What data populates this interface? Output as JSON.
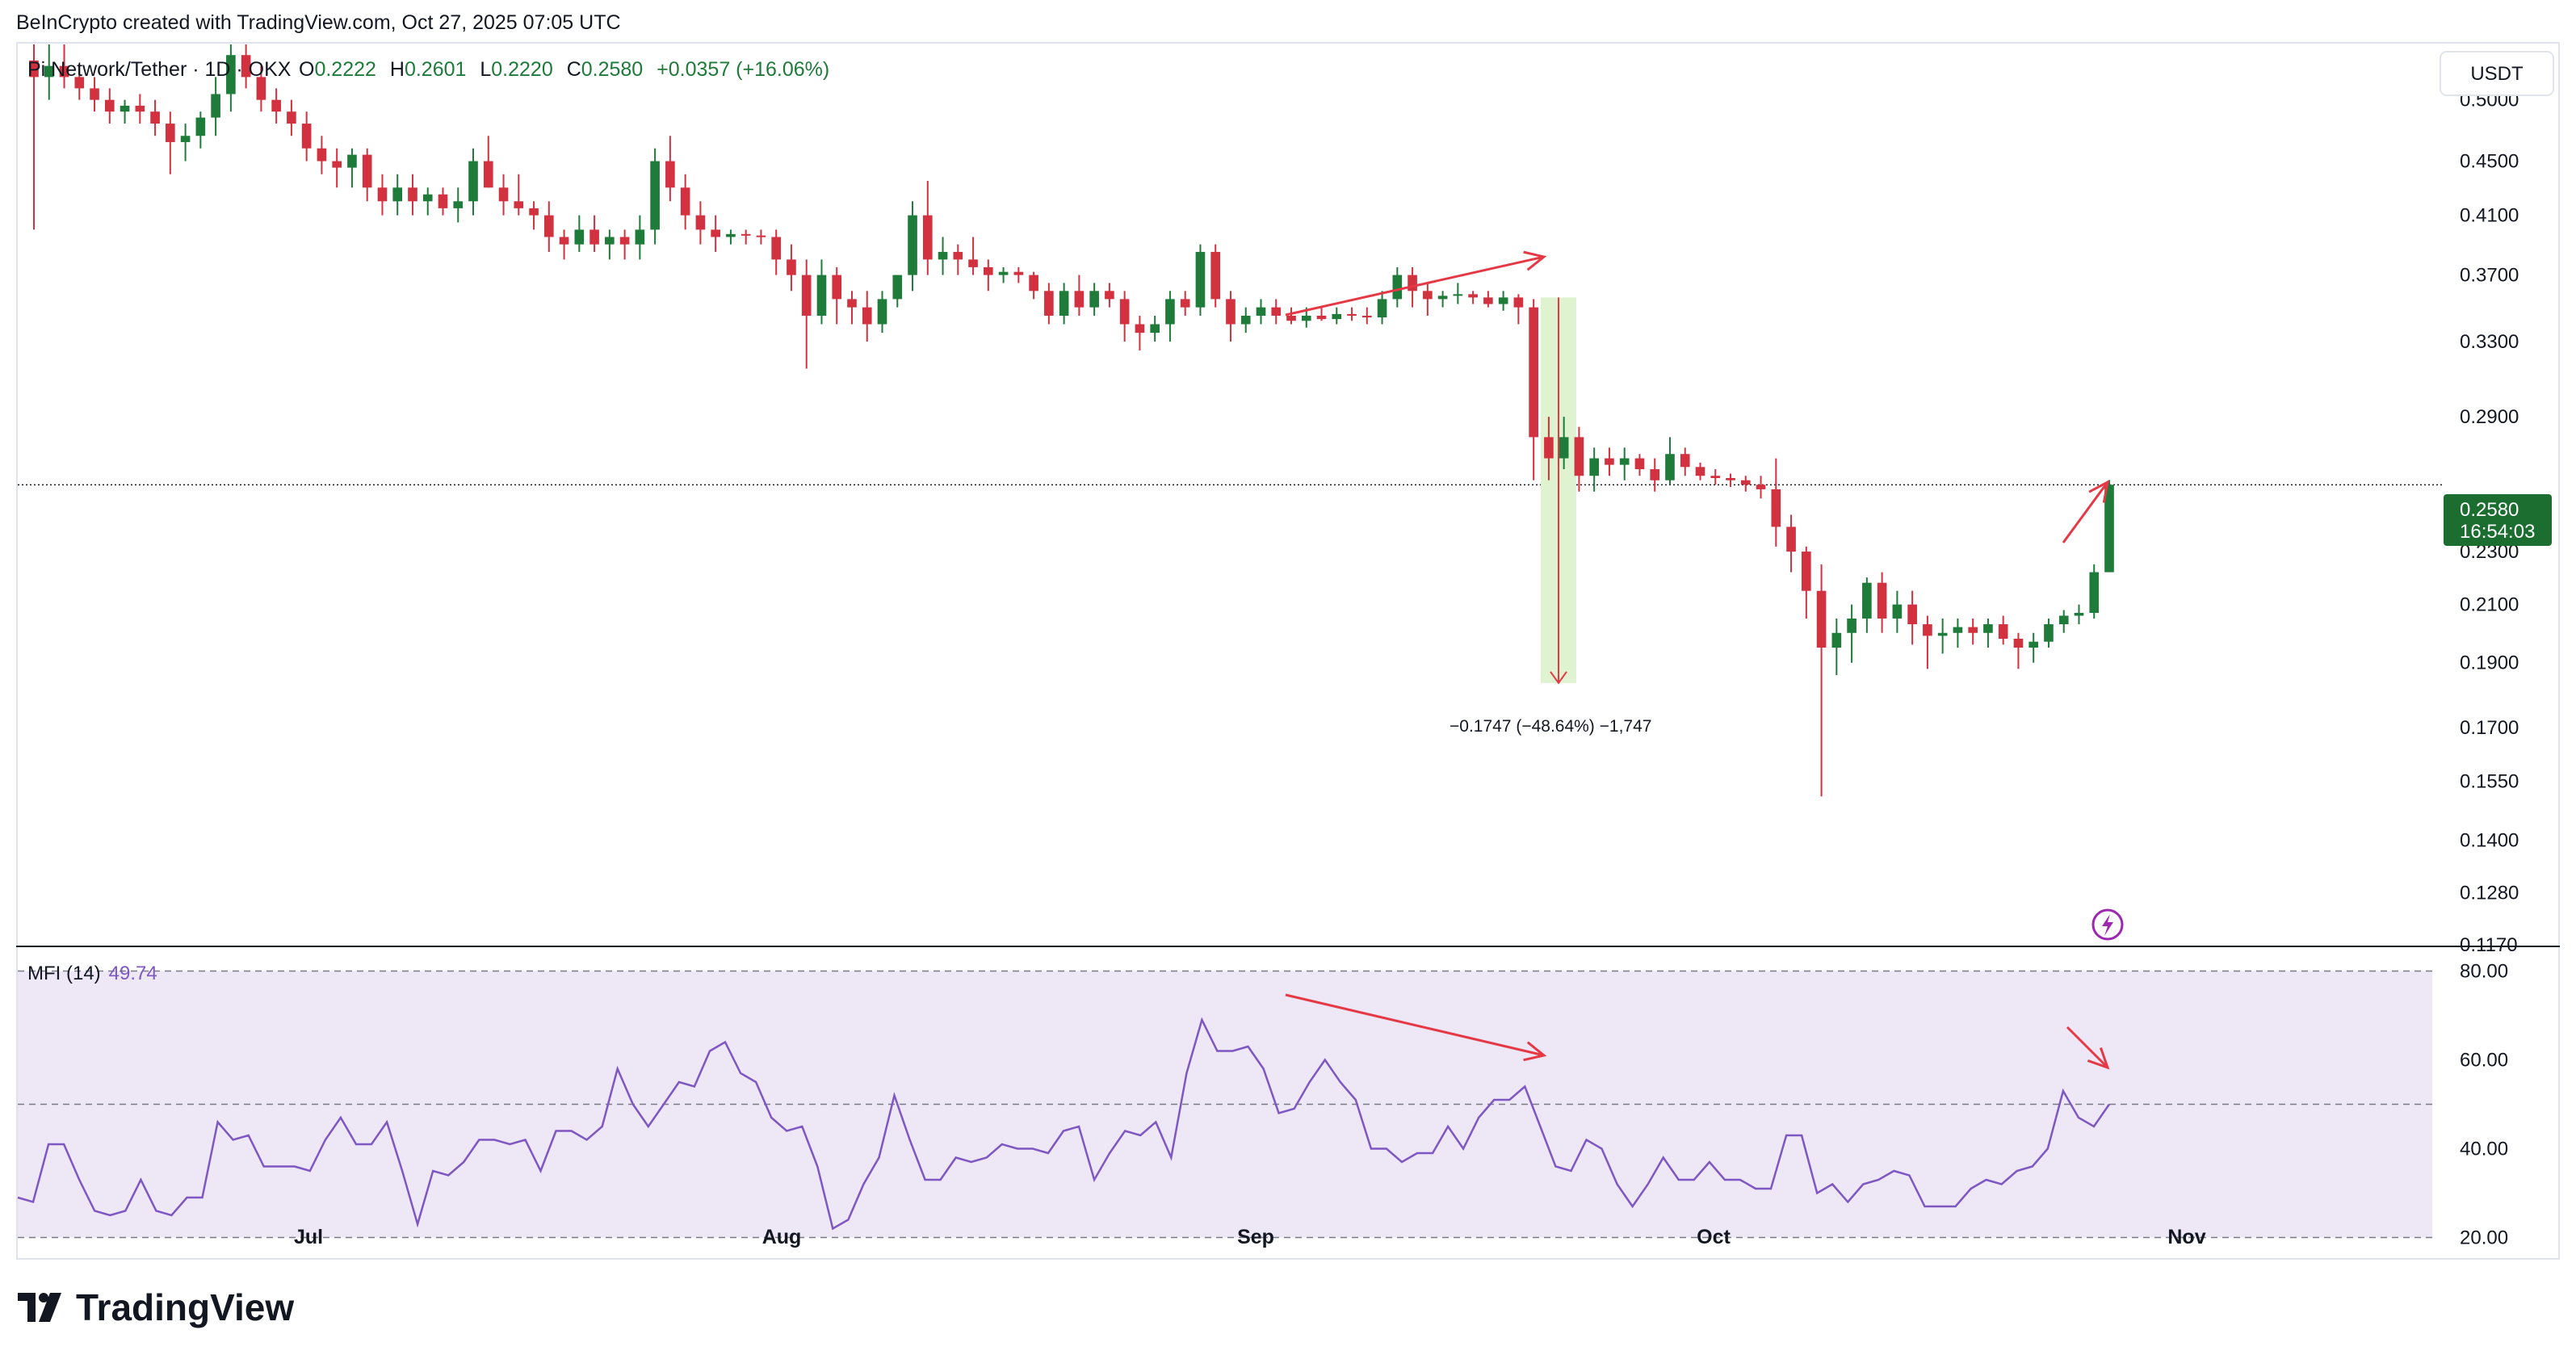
{
  "header": {
    "attribution": "BeInCrypto created with TradingView.com, Oct 27, 2025 07:05 UTC",
    "symbol": "Pi Network/Tether · 1D · OKX",
    "open_label": "O",
    "open": "0.2222",
    "high_label": "H",
    "high": "0.2601",
    "low_label": "L",
    "low": "0.2220",
    "close_label": "C",
    "close": "0.2580",
    "change": "+0.0357 (+16.06%)"
  },
  "axis": {
    "currency_button": "USDT",
    "price_ticks": [
      "0.5000",
      "0.4500",
      "0.4100",
      "0.3700",
      "0.3300",
      "0.2900",
      "0.2300",
      "0.2100",
      "0.1900",
      "0.1700",
      "0.1550",
      "0.1400",
      "0.1280",
      "0.1170"
    ],
    "current_price": "0.2580",
    "countdown": "16:54:03",
    "mfi_ticks": [
      "80.00",
      "60.00",
      "40.00",
      "20.00"
    ],
    "time_labels": [
      "Jul",
      "Aug",
      "Sep",
      "Oct",
      "Nov"
    ]
  },
  "annotations": {
    "measure_label": "−0.1747 (−48.64%) −1,747"
  },
  "indicator": {
    "name": "MFI (14)",
    "value": "49.74"
  },
  "footer": {
    "logo_text": "TradingView"
  },
  "colors": {
    "up": "#1e7b3a",
    "down": "#d2313f",
    "mfi_line": "#7e57c2",
    "mfi_band": "#ede7f6",
    "annotation": "#e53946",
    "measure_fill": "#dff3d0",
    "price_badge": "#1b6e2f"
  },
  "chart_data": [
    {
      "type": "candlestick",
      "title": "Pi Network/Tether · 1D · OKX",
      "y_axis": "USDT",
      "y_scale": "log",
      "ylim": [
        0.117,
        0.55
      ],
      "x_labels": [
        "Jul",
        "Aug",
        "Sep",
        "Oct",
        "Nov"
      ],
      "last_close": 0.258,
      "ohlc": [
        [
          0.535,
          0.55,
          0.4,
          0.52
        ],
        [
          0.52,
          0.55,
          0.5,
          0.53
        ],
        [
          0.53,
          0.55,
          0.51,
          0.52
        ],
        [
          0.52,
          0.53,
          0.5,
          0.51
        ],
        [
          0.51,
          0.52,
          0.49,
          0.5
        ],
        [
          0.5,
          0.51,
          0.48,
          0.49
        ],
        [
          0.49,
          0.5,
          0.48,
          0.495
        ],
        [
          0.495,
          0.505,
          0.48,
          0.49
        ],
        [
          0.49,
          0.5,
          0.47,
          0.48
        ],
        [
          0.48,
          0.49,
          0.44,
          0.465
        ],
        [
          0.465,
          0.48,
          0.45,
          0.47
        ],
        [
          0.47,
          0.49,
          0.46,
          0.485
        ],
        [
          0.485,
          0.52,
          0.47,
          0.505
        ],
        [
          0.505,
          0.55,
          0.49,
          0.54
        ],
        [
          0.54,
          0.55,
          0.51,
          0.52
        ],
        [
          0.52,
          0.53,
          0.49,
          0.5
        ],
        [
          0.5,
          0.51,
          0.48,
          0.49
        ],
        [
          0.49,
          0.5,
          0.47,
          0.48
        ],
        [
          0.48,
          0.49,
          0.45,
          0.46
        ],
        [
          0.46,
          0.47,
          0.44,
          0.45
        ],
        [
          0.45,
          0.46,
          0.43,
          0.445
        ],
        [
          0.445,
          0.46,
          0.43,
          0.455
        ],
        [
          0.455,
          0.46,
          0.42,
          0.43
        ],
        [
          0.43,
          0.44,
          0.41,
          0.42
        ],
        [
          0.42,
          0.44,
          0.41,
          0.43
        ],
        [
          0.43,
          0.44,
          0.41,
          0.42
        ],
        [
          0.42,
          0.43,
          0.41,
          0.425
        ],
        [
          0.425,
          0.43,
          0.41,
          0.415
        ],
        [
          0.415,
          0.43,
          0.405,
          0.42
        ],
        [
          0.42,
          0.46,
          0.41,
          0.45
        ],
        [
          0.45,
          0.47,
          0.43,
          0.43
        ],
        [
          0.43,
          0.44,
          0.41,
          0.42
        ],
        [
          0.42,
          0.44,
          0.41,
          0.415
        ],
        [
          0.415,
          0.42,
          0.4,
          0.41
        ],
        [
          0.41,
          0.42,
          0.385,
          0.395
        ],
        [
          0.395,
          0.4,
          0.38,
          0.39
        ],
        [
          0.39,
          0.41,
          0.385,
          0.4
        ],
        [
          0.4,
          0.41,
          0.385,
          0.39
        ],
        [
          0.39,
          0.4,
          0.38,
          0.395
        ],
        [
          0.395,
          0.4,
          0.38,
          0.39
        ],
        [
          0.39,
          0.41,
          0.38,
          0.4
        ],
        [
          0.4,
          0.46,
          0.39,
          0.45
        ],
        [
          0.45,
          0.47,
          0.42,
          0.43
        ],
        [
          0.43,
          0.44,
          0.4,
          0.41
        ],
        [
          0.41,
          0.42,
          0.39,
          0.4
        ],
        [
          0.4,
          0.41,
          0.385,
          0.395
        ],
        [
          0.395,
          0.4,
          0.39,
          0.397
        ],
        [
          0.397,
          0.4,
          0.39,
          0.396
        ],
        [
          0.396,
          0.4,
          0.39,
          0.395
        ],
        [
          0.395,
          0.4,
          0.37,
          0.38
        ],
        [
          0.38,
          0.39,
          0.36,
          0.37
        ],
        [
          0.37,
          0.38,
          0.315,
          0.345
        ],
        [
          0.345,
          0.38,
          0.34,
          0.37
        ],
        [
          0.37,
          0.375,
          0.34,
          0.355
        ],
        [
          0.355,
          0.36,
          0.34,
          0.35
        ],
        [
          0.35,
          0.36,
          0.33,
          0.34
        ],
        [
          0.34,
          0.36,
          0.335,
          0.355
        ],
        [
          0.355,
          0.37,
          0.35,
          0.37
        ],
        [
          0.37,
          0.42,
          0.36,
          0.41
        ],
        [
          0.41,
          0.435,
          0.37,
          0.38
        ],
        [
          0.38,
          0.395,
          0.37,
          0.385
        ],
        [
          0.385,
          0.39,
          0.37,
          0.38
        ],
        [
          0.38,
          0.395,
          0.37,
          0.375
        ],
        [
          0.375,
          0.38,
          0.36,
          0.37
        ],
        [
          0.37,
          0.375,
          0.365,
          0.372
        ],
        [
          0.372,
          0.375,
          0.365,
          0.37
        ],
        [
          0.37,
          0.372,
          0.355,
          0.36
        ],
        [
          0.36,
          0.365,
          0.34,
          0.345
        ],
        [
          0.345,
          0.365,
          0.34,
          0.36
        ],
        [
          0.36,
          0.37,
          0.345,
          0.35
        ],
        [
          0.35,
          0.365,
          0.345,
          0.36
        ],
        [
          0.36,
          0.365,
          0.35,
          0.355
        ],
        [
          0.355,
          0.36,
          0.33,
          0.34
        ],
        [
          0.34,
          0.345,
          0.325,
          0.335
        ],
        [
          0.335,
          0.345,
          0.33,
          0.34
        ],
        [
          0.34,
          0.36,
          0.33,
          0.355
        ],
        [
          0.355,
          0.36,
          0.345,
          0.35
        ],
        [
          0.35,
          0.39,
          0.345,
          0.385
        ],
        [
          0.385,
          0.39,
          0.35,
          0.355
        ],
        [
          0.355,
          0.36,
          0.33,
          0.34
        ],
        [
          0.34,
          0.35,
          0.335,
          0.345
        ],
        [
          0.345,
          0.355,
          0.34,
          0.35
        ],
        [
          0.35,
          0.355,
          0.34,
          0.345
        ],
        [
          0.345,
          0.35,
          0.34,
          0.342
        ],
        [
          0.342,
          0.35,
          0.338,
          0.345
        ],
        [
          0.345,
          0.35,
          0.342,
          0.343
        ],
        [
          0.343,
          0.35,
          0.34,
          0.346
        ],
        [
          0.346,
          0.35,
          0.342,
          0.345
        ],
        [
          0.345,
          0.35,
          0.34,
          0.344
        ],
        [
          0.344,
          0.36,
          0.34,
          0.355
        ],
        [
          0.355,
          0.375,
          0.35,
          0.37
        ],
        [
          0.37,
          0.375,
          0.35,
          0.36
        ],
        [
          0.36,
          0.365,
          0.345,
          0.355
        ],
        [
          0.355,
          0.36,
          0.35,
          0.357
        ],
        [
          0.357,
          0.365,
          0.352,
          0.358
        ],
        [
          0.358,
          0.36,
          0.352,
          0.356
        ],
        [
          0.356,
          0.36,
          0.35,
          0.352
        ],
        [
          0.352,
          0.36,
          0.348,
          0.356
        ],
        [
          0.356,
          0.358,
          0.34,
          0.35
        ],
        [
          0.35,
          0.355,
          0.26,
          0.28
        ],
        [
          0.28,
          0.29,
          0.26,
          0.27
        ],
        [
          0.27,
          0.29,
          0.265,
          0.28
        ],
        [
          0.28,
          0.285,
          0.255,
          0.262
        ],
        [
          0.262,
          0.275,
          0.255,
          0.27
        ],
        [
          0.27,
          0.275,
          0.262,
          0.267
        ],
        [
          0.267,
          0.275,
          0.26,
          0.27
        ],
        [
          0.27,
          0.272,
          0.262,
          0.265
        ],
        [
          0.265,
          0.27,
          0.255,
          0.26
        ],
        [
          0.26,
          0.28,
          0.258,
          0.272
        ],
        [
          0.272,
          0.275,
          0.262,
          0.266
        ],
        [
          0.266,
          0.268,
          0.26,
          0.262
        ],
        [
          0.262,
          0.265,
          0.258,
          0.261
        ],
        [
          0.261,
          0.263,
          0.257,
          0.26
        ],
        [
          0.26,
          0.262,
          0.255,
          0.258
        ],
        [
          0.258,
          0.262,
          0.252,
          0.256
        ],
        [
          0.256,
          0.27,
          0.232,
          0.24
        ],
        [
          0.24,
          0.245,
          0.222,
          0.23
        ],
        [
          0.23,
          0.232,
          0.205,
          0.215
        ],
        [
          0.215,
          0.225,
          0.151,
          0.195
        ],
        [
          0.195,
          0.205,
          0.186,
          0.2
        ],
        [
          0.2,
          0.21,
          0.19,
          0.205
        ],
        [
          0.205,
          0.22,
          0.2,
          0.218
        ],
        [
          0.218,
          0.222,
          0.2,
          0.205
        ],
        [
          0.205,
          0.215,
          0.2,
          0.21
        ],
        [
          0.21,
          0.215,
          0.196,
          0.203
        ],
        [
          0.203,
          0.206,
          0.188,
          0.199
        ],
        [
          0.199,
          0.205,
          0.193,
          0.2
        ],
        [
          0.2,
          0.205,
          0.195,
          0.202
        ],
        [
          0.202,
          0.205,
          0.196,
          0.2
        ],
        [
          0.2,
          0.205,
          0.195,
          0.203
        ],
        [
          0.203,
          0.206,
          0.196,
          0.198
        ],
        [
          0.198,
          0.2,
          0.188,
          0.195
        ],
        [
          0.195,
          0.2,
          0.19,
          0.197
        ],
        [
          0.197,
          0.205,
          0.195,
          0.203
        ],
        [
          0.203,
          0.208,
          0.2,
          0.206
        ],
        [
          0.206,
          0.21,
          0.203,
          0.207
        ],
        [
          0.207,
          0.225,
          0.205,
          0.222
        ],
        [
          0.222,
          0.2601,
          0.222,
          0.258
        ]
      ]
    },
    {
      "type": "line",
      "title": "MFI (14)",
      "last_value": 49.74,
      "ylim": [
        15,
        85
      ],
      "bands": [
        20,
        50,
        80
      ],
      "values": [
        29,
        28,
        41,
        41,
        33,
        26,
        25,
        26,
        33,
        26,
        25,
        29,
        29,
        46,
        42,
        43,
        36,
        36,
        36,
        35,
        42,
        47,
        41,
        41,
        46,
        35,
        23,
        35,
        34,
        37,
        42,
        42,
        41,
        42,
        35,
        44,
        44,
        42,
        45,
        58,
        50,
        45,
        50,
        55,
        54,
        62,
        64,
        57,
        55,
        47,
        44,
        45,
        36,
        22,
        24,
        32,
        38,
        52,
        42,
        33,
        33,
        38,
        37,
        38,
        41,
        40,
        40,
        39,
        44,
        45,
        33,
        39,
        44,
        43,
        46,
        38,
        57,
        69,
        62,
        62,
        63,
        58,
        48,
        49,
        55,
        60,
        55,
        51,
        40,
        40,
        37,
        39,
        39,
        45,
        40,
        47,
        51,
        51,
        54,
        45,
        36,
        35,
        42,
        40,
        32,
        27,
        32,
        38,
        33,
        33,
        37,
        33,
        33,
        31,
        31,
        43,
        43,
        30,
        32,
        28,
        32,
        33,
        35,
        34,
        27,
        27,
        27,
        31,
        33,
        32,
        35,
        36,
        40,
        53,
        47,
        45,
        50
      ]
    }
  ]
}
